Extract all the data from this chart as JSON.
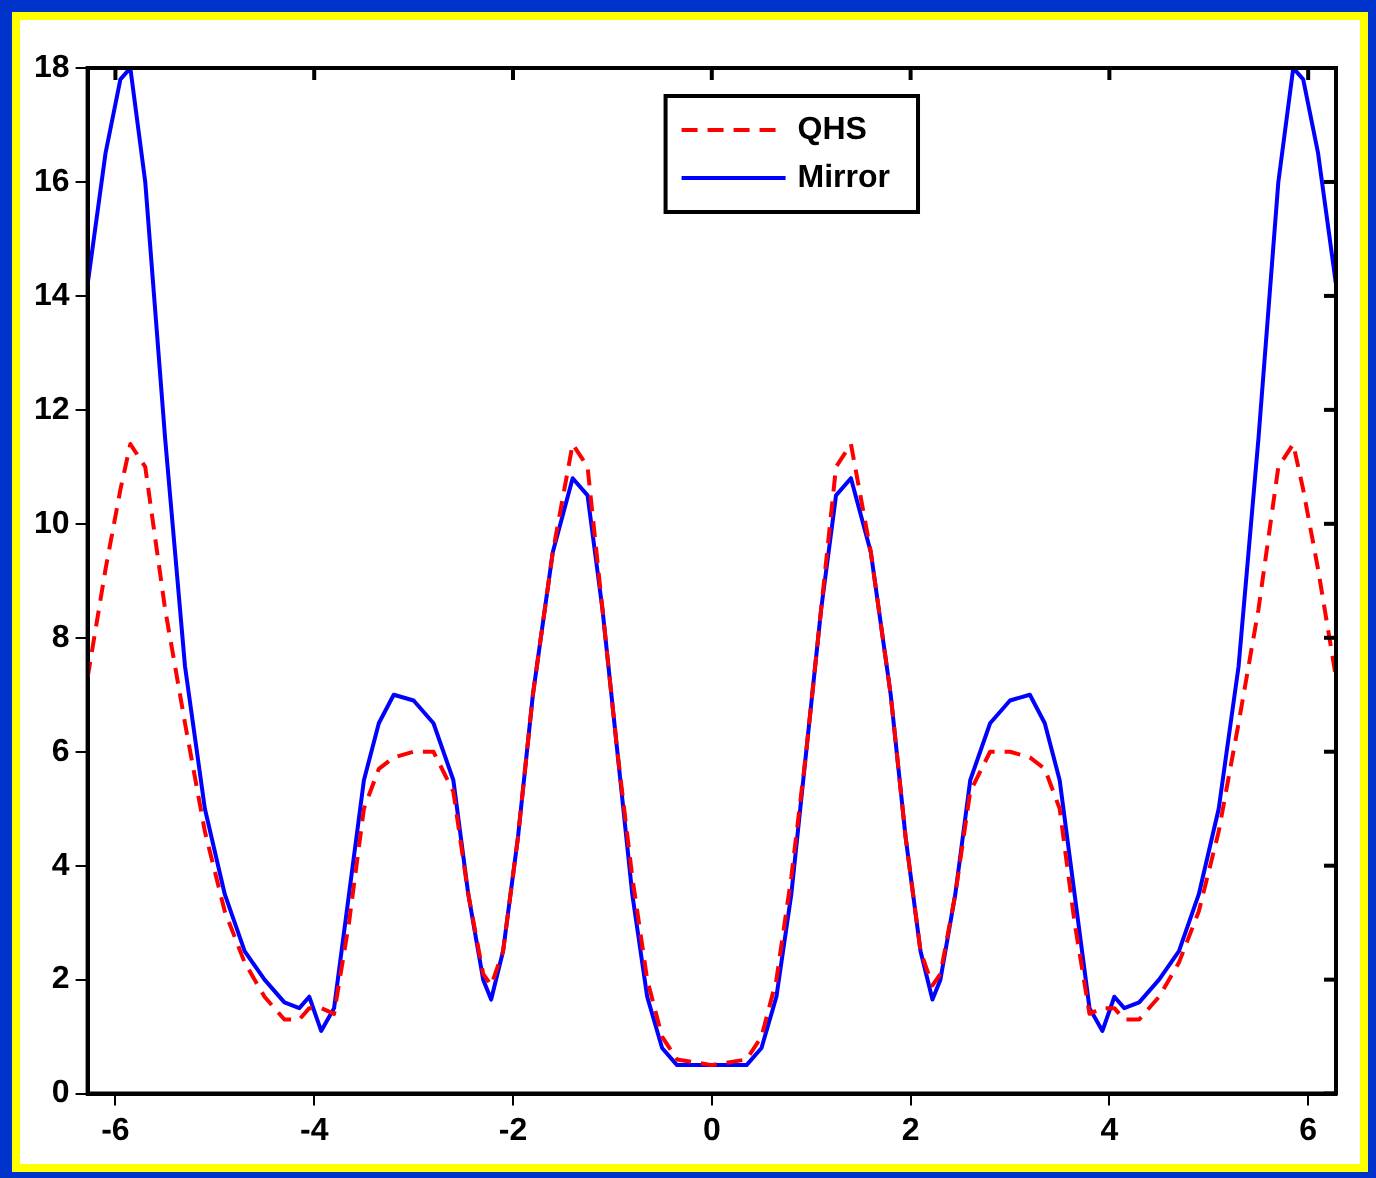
{
  "chart_data": {
    "type": "line",
    "x": [
      -6.28,
      -6.1,
      -5.95,
      -5.85,
      -5.7,
      -5.5,
      -5.3,
      -5.1,
      -4.9,
      -4.7,
      -4.5,
      -4.3,
      -4.15,
      -4.05,
      -3.93,
      -3.8,
      -3.65,
      -3.5,
      -3.35,
      -3.2,
      -3.0,
      -2.8,
      -2.6,
      -2.45,
      -2.3,
      -2.22,
      -2.1,
      -1.95,
      -1.8,
      -1.6,
      -1.4,
      -1.25,
      -1.1,
      -0.95,
      -0.8,
      -0.65,
      -0.5,
      -0.35,
      0,
      0.35,
      0.5,
      0.65,
      0.8,
      0.95,
      1.1,
      1.25,
      1.4,
      1.6,
      1.8,
      1.95,
      2.1,
      2.22,
      2.3,
      2.45,
      2.6,
      2.8,
      3.0,
      3.2,
      3.35,
      3.5,
      3.65,
      3.8,
      3.93,
      4.05,
      4.15,
      4.3,
      4.5,
      4.7,
      4.9,
      5.1,
      5.3,
      5.5,
      5.7,
      5.85,
      5.95,
      6.1,
      6.28
    ],
    "series": [
      {
        "name": "QHS",
        "color": "#ff0000",
        "line_style": "dashed",
        "values": [
          7.3,
          9.2,
          10.6,
          11.4,
          11,
          8.5,
          6.5,
          4.6,
          3.2,
          2.3,
          1.7,
          1.3,
          1.3,
          1.5,
          1.5,
          1.4,
          3,
          5,
          5.7,
          5.9,
          6,
          6,
          5.3,
          3.5,
          2.1,
          1.9,
          2.5,
          4.5,
          7,
          9.5,
          11.4,
          11,
          8.5,
          6,
          3.8,
          2,
          1,
          0.6,
          0.5,
          0.6,
          1,
          2,
          3.8,
          6,
          8.5,
          11,
          11.4,
          9.5,
          7,
          4.5,
          2.5,
          1.9,
          2.1,
          3.5,
          5.3,
          6,
          6,
          5.9,
          5.7,
          5,
          3,
          1.4,
          1.5,
          1.5,
          1.3,
          1.3,
          1.7,
          2.3,
          3.2,
          4.6,
          6.5,
          8.5,
          11,
          11.4,
          10.6,
          9.2,
          7.3
        ]
      },
      {
        "name": "Mirror",
        "color": "#0000ff",
        "line_style": "solid",
        "values": [
          14.2,
          16.5,
          17.8,
          18,
          16,
          11.5,
          7.5,
          5,
          3.5,
          2.5,
          2,
          1.6,
          1.5,
          1.7,
          1.1,
          1.5,
          3.5,
          5.5,
          6.5,
          7,
          6.9,
          6.5,
          5.5,
          3.5,
          2,
          1.65,
          2.5,
          4.5,
          7,
          9.5,
          10.8,
          10.5,
          8.5,
          6,
          3.5,
          1.7,
          0.8,
          0.5,
          0.5,
          0.5,
          0.8,
          1.7,
          3.5,
          6,
          8.5,
          10.5,
          10.8,
          9.5,
          7,
          4.5,
          2.5,
          1.65,
          2,
          3.5,
          5.5,
          6.5,
          6.9,
          7,
          6.5,
          5.5,
          3.5,
          1.5,
          1.1,
          1.7,
          1.5,
          1.6,
          2,
          2.5,
          3.5,
          5,
          7.5,
          11.5,
          16,
          18,
          17.8,
          16.5,
          14.2
        ]
      }
    ],
    "xlim": [
      -6.28,
      6.28
    ],
    "xticks": [
      -6,
      -4,
      -2,
      0,
      2,
      4,
      6
    ],
    "ylim": [
      0,
      18
    ],
    "yticks": [
      0,
      2,
      4,
      6,
      8,
      10,
      12,
      14,
      16,
      18
    ],
    "grid": false,
    "legend": "top",
    "marker": "none"
  }
}
